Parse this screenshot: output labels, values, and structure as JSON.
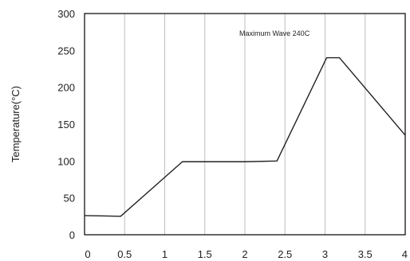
{
  "chart_data": {
    "type": "line",
    "title": "",
    "xlabel": "",
    "ylabel": "Temperature(°C)",
    "annotation": "Maximum Wave 240C",
    "xlim": [
      0,
      4
    ],
    "ylim": [
      0,
      300
    ],
    "x_ticks": [
      "0",
      "0.5",
      "1",
      "1.5",
      "2",
      "2.5",
      "3",
      "3.5",
      "4"
    ],
    "y_ticks": [
      "0",
      "50",
      "100",
      "150",
      "200",
      "250",
      "300"
    ],
    "grid": "vertical",
    "series": [
      {
        "x": [
          0,
          0.45,
          1.22,
          2.0,
          2.4,
          3.02,
          3.18,
          4.0
        ],
        "y": [
          26,
          25,
          99,
          99,
          100,
          240,
          240,
          135
        ]
      }
    ],
    "colors": {
      "line": "#222222",
      "grid": "#bdbdbd",
      "frame": "#000000"
    }
  }
}
